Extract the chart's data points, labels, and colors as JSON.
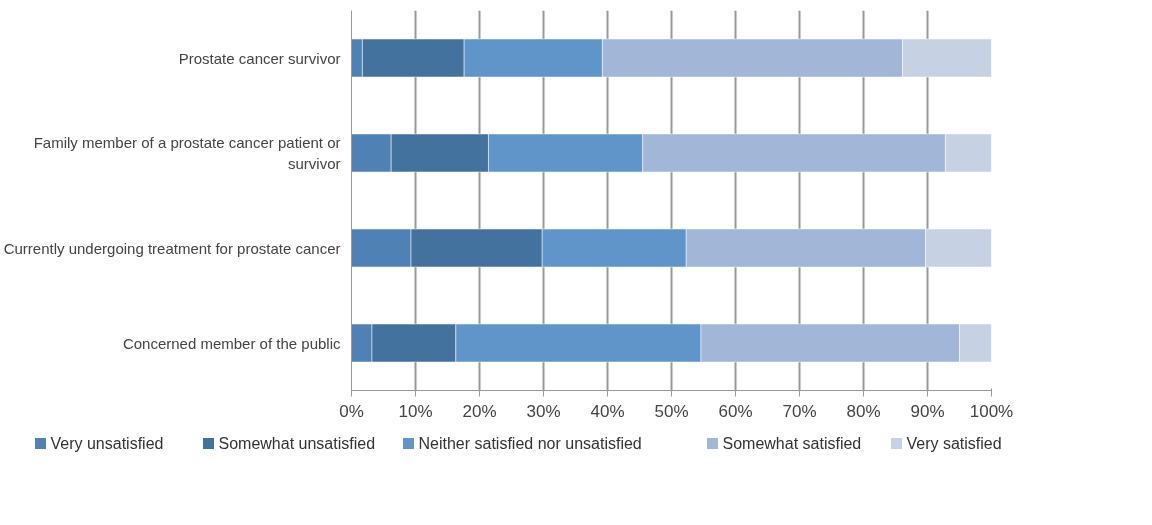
{
  "chart_data": {
    "type": "bar",
    "orientation": "horizontal",
    "stacked": true,
    "categories": [
      "Prostate cancer survivor",
      "Family member of a prostate cancer patient or survivor",
      "Currently undergoing treatment for prostate cancer",
      "Concerned member of the public"
    ],
    "series": [
      {
        "name": "Very unsatisfied",
        "color": "#4f81b5",
        "values": [
          1.7,
          6.2,
          9.3,
          3.2
        ]
      },
      {
        "name": "Somewhat unsatisfied",
        "color": "#44729f",
        "values": [
          15.9,
          15.2,
          20.5,
          13.1
        ]
      },
      {
        "name": "Neither satisfied nor unsatisfied",
        "color": "#5f95c9",
        "values": [
          21.6,
          24.1,
          22.5,
          38.3
        ]
      },
      {
        "name": "Somewhat satisfied",
        "color": "#a2b6d8",
        "values": [
          46.9,
          47.3,
          37.4,
          40.4
        ]
      },
      {
        "name": "Very satisfied",
        "color": "#c6d1e4",
        "values": [
          13.9,
          7.2,
          10.3,
          5.0
        ]
      }
    ],
    "xlim": [
      0,
      100
    ],
    "xticks": [
      {
        "value": 0,
        "label": "0%"
      },
      {
        "value": 10,
        "label": "10%"
      },
      {
        "value": 20,
        "label": "20%"
      },
      {
        "value": 30,
        "label": "30%"
      },
      {
        "value": 40,
        "label": "40%"
      },
      {
        "value": 50,
        "label": "50%"
      },
      {
        "value": 60,
        "label": "60%"
      },
      {
        "value": 70,
        "label": "70%"
      },
      {
        "value": 80,
        "label": "80%"
      },
      {
        "value": 90,
        "label": "90%"
      },
      {
        "value": 100,
        "label": "100%"
      }
    ],
    "grid": "x",
    "legend": "bottom"
  }
}
